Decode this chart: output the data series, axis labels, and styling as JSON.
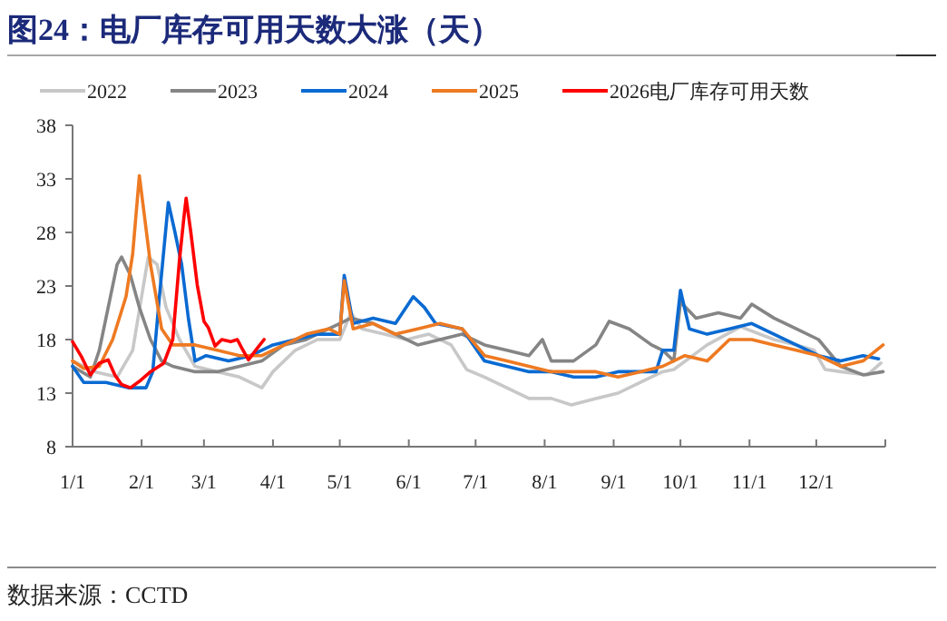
{
  "chart_data": {
    "type": "line",
    "title": "图24：电厂库存可用天数大涨（天）",
    "xlim": [
      "--01-01",
      "--12-31"
    ],
    "xticks": [
      {
        "value": "--01-01",
        "label": "1/1"
      },
      {
        "value": "--02-01",
        "label": "2/1"
      },
      {
        "value": "--03-01",
        "label": "3/1"
      },
      {
        "value": "--04-01",
        "label": "4/1"
      },
      {
        "value": "--05-01",
        "label": "5/1"
      },
      {
        "value": "--06-01",
        "label": "6/1"
      },
      {
        "value": "--07-01",
        "label": "7/1"
      },
      {
        "value": "--08-01",
        "label": "8/1"
      },
      {
        "value": "--09-01",
        "label": "9/1"
      },
      {
        "value": "--10-01",
        "label": "10/1"
      },
      {
        "value": "--11-01",
        "label": "11/1"
      },
      {
        "value": "--12-01",
        "label": "12/1"
      }
    ],
    "ylim": [
      8,
      38
    ],
    "yticks": [
      8,
      13,
      18,
      23,
      28,
      33,
      38
    ],
    "grid": false,
    "legend": "top",
    "annotations": [
      "数据来源：CCTD"
    ],
    "series": [
      {
        "name": "2022",
        "color": "#c8c8c8",
        "x": [
          "--01-01",
          "--01-11",
          "--01-21",
          "--01-28",
          "--02-01",
          "--02-04",
          "--02-08",
          "--02-12",
          "--02-18",
          "--02-25",
          "--03-07",
          "--03-17",
          "--03-27",
          "--04-01",
          "--04-11",
          "--04-21",
          "--05-01",
          "--05-06",
          "--05-11",
          "--05-21",
          "--05-31",
          "--06-10",
          "--06-20",
          "--06-27",
          "--07-05",
          "--07-15",
          "--07-25",
          "--08-04",
          "--08-13",
          "--08-24",
          "--09-03",
          "--09-13",
          "--09-23",
          "--09-28",
          "--10-13",
          "--10-28",
          "--11-12",
          "--11-22",
          "--11-30",
          "--12-05",
          "--12-12",
          "--12-24",
          "--12-30"
        ],
        "values": [
          16,
          15,
          14.5,
          17,
          22,
          25.7,
          25,
          21,
          18,
          15.5,
          15,
          14.5,
          13.5,
          15,
          17,
          18,
          18,
          20.5,
          19,
          18.5,
          18,
          18.5,
          17.5,
          15.2,
          14.5,
          13.5,
          12.5,
          12.5,
          11.9,
          12.5,
          13,
          14,
          15,
          15.2,
          17.5,
          19.2,
          18,
          17.5,
          17,
          15.2,
          15,
          14.7,
          15.8
        ]
      },
      {
        "name": "2023",
        "color": "#858585",
        "x": [
          "--01-01",
          "--01-09",
          "--01-13",
          "--01-17",
          "--01-21",
          "--01-23",
          "--01-27",
          "--01-31",
          "--02-05",
          "--02-10",
          "--02-15",
          "--02-25",
          "--03-07",
          "--03-17",
          "--03-27",
          "--04-06",
          "--04-16",
          "--04-26",
          "--05-01",
          "--05-06",
          "--05-16",
          "--05-26",
          "--06-05",
          "--06-15",
          "--06-25",
          "--07-05",
          "--07-15",
          "--07-25",
          "--07-31",
          "--08-04",
          "--08-14",
          "--08-24",
          "--08-30",
          "--09-08",
          "--09-18",
          "--09-23",
          "--09-28",
          "--10-01",
          "--10-08",
          "--10-18",
          "--10-28",
          "--11-02",
          "--11-12",
          "--11-22",
          "--12-02",
          "--12-12",
          "--12-22",
          "--12-31"
        ],
        "values": [
          15.5,
          14.5,
          17,
          21,
          25,
          25.7,
          24,
          21,
          18,
          16,
          15.5,
          15,
          15,
          15.5,
          16,
          17.5,
          18,
          19,
          19.5,
          20,
          19.5,
          18.5,
          17.5,
          18,
          18.5,
          17.5,
          17,
          16.5,
          18,
          16,
          16,
          17.5,
          19.7,
          19,
          17.5,
          17,
          16,
          21.5,
          20,
          20.5,
          20,
          21.3,
          20,
          19,
          18,
          15.5,
          14.7,
          15
        ]
      },
      {
        "name": "2024",
        "color": "#0a6ad2",
        "x": [
          "--01-01",
          "--01-06",
          "--01-16",
          "--01-26",
          "--02-03",
          "--02-06",
          "--02-09",
          "--02-13",
          "--02-16",
          "--02-19",
          "--02-22",
          "--02-25",
          "--03-02",
          "--03-12",
          "--03-22",
          "--04-01",
          "--04-11",
          "--04-21",
          "--05-01",
          "--05-03",
          "--05-07",
          "--05-16",
          "--05-26",
          "--06-03",
          "--06-08",
          "--06-13",
          "--06-25",
          "--07-05",
          "--07-15",
          "--07-25",
          "--08-04",
          "--08-14",
          "--08-24",
          "--09-03",
          "--09-13",
          "--09-20",
          "--09-23",
          "--09-28",
          "--10-01",
          "--10-05",
          "--10-13",
          "--10-23",
          "--11-02",
          "--11-12",
          "--11-22",
          "--12-02",
          "--12-12",
          "--12-22",
          "--12-29"
        ],
        "values": [
          15.5,
          14,
          14,
          13.5,
          13.5,
          15,
          22,
          30.8,
          28,
          25,
          20,
          16,
          16.5,
          16,
          16.5,
          17.5,
          18,
          18.5,
          18.5,
          24,
          19.5,
          20,
          19.5,
          22,
          21,
          19.5,
          19,
          16,
          15.5,
          15,
          15,
          14.5,
          14.5,
          15,
          15,
          15,
          17,
          17,
          22.6,
          19,
          18.5,
          19,
          19.5,
          18.5,
          17.5,
          16.5,
          16,
          16.5,
          16.2
        ]
      },
      {
        "name": "2025",
        "color": "#ee7a22",
        "x": [
          "--01-01",
          "--01-06",
          "--01-13",
          "--01-19",
          "--01-25",
          "--01-28",
          "--01-31",
          "--02-02",
          "--02-05",
          "--02-10",
          "--02-15",
          "--02-25",
          "--03-07",
          "--03-17",
          "--03-27",
          "--04-06",
          "--04-16",
          "--04-26",
          "--05-01",
          "--05-03",
          "--05-07",
          "--05-16",
          "--05-26",
          "--06-05",
          "--06-15",
          "--06-25",
          "--07-05",
          "--07-15",
          "--07-25",
          "--08-04",
          "--08-14",
          "--08-24",
          "--09-03",
          "--09-13",
          "--09-23",
          "--10-03",
          "--10-13",
          "--10-23",
          "--11-02",
          "--11-12",
          "--11-22",
          "--12-02",
          "--12-12",
          "--12-22",
          "--12-31"
        ],
        "values": [
          16,
          15.3,
          15.5,
          18,
          22,
          26,
          33.3,
          30,
          25,
          19,
          17.5,
          17.5,
          17,
          16.5,
          16.5,
          17.5,
          18.5,
          19,
          18.5,
          23.5,
          19,
          19.5,
          18.5,
          19,
          19.5,
          19,
          16.5,
          16,
          15.5,
          15,
          15,
          15,
          14.5,
          15,
          15.5,
          16.5,
          16,
          18,
          18,
          17.5,
          17,
          16.5,
          15.5,
          16,
          17.5
        ]
      },
      {
        "name": "2026电厂库存可用天数",
        "color": "#ff0000",
        "x": [
          "--01-01",
          "--01-05",
          "--01-09",
          "--01-13",
          "--01-17",
          "--01-20",
          "--01-23",
          "--01-27",
          "--01-31",
          "--02-05",
          "--02-11",
          "--02-15",
          "--02-18",
          "--02-20",
          "--02-21",
          "--02-23",
          "--02-26",
          "--03-01",
          "--03-03",
          "--03-06",
          "--03-09",
          "--03-13",
          "--03-16",
          "--03-18",
          "--03-21",
          "--03-25",
          "--03-28"
        ],
        "values": [
          17.8,
          16.4,
          14.7,
          15.8,
          16.1,
          14.7,
          13.8,
          13.5,
          14.1,
          15,
          15.8,
          18,
          25.4,
          29.4,
          31.2,
          28.2,
          23.1,
          19.7,
          19.1,
          17.4,
          18,
          17.8,
          18,
          17.2,
          16.1,
          17.2,
          18
        ]
      }
    ]
  }
}
